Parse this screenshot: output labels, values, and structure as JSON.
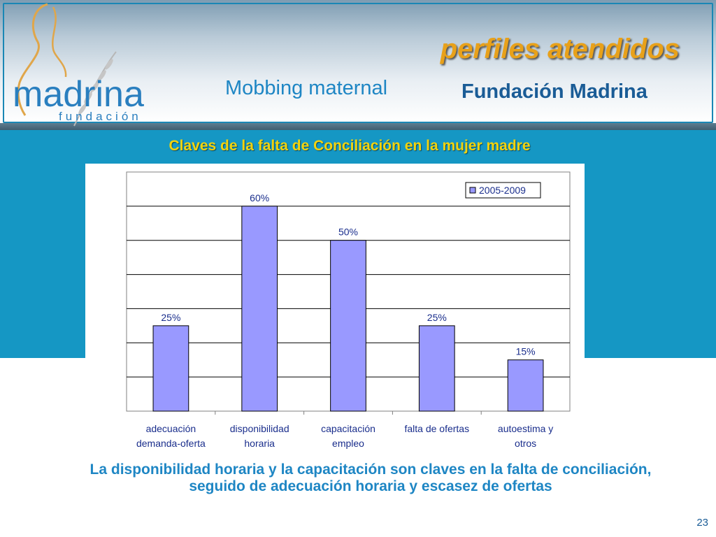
{
  "header": {
    "title": "perfiles atendidos",
    "subtitle_left": "Mobbing maternal",
    "subtitle_right": "Fundación Madrina",
    "logo": {
      "name": "madrina",
      "tagline": "fundación"
    }
  },
  "chart_data": {
    "type": "bar",
    "title": "Claves de la falta de Conciliación en la mujer madre",
    "categories": [
      [
        "adecuación",
        "demanda-oferta"
      ],
      [
        "disponibilidad",
        "horaria"
      ],
      [
        "capacitación",
        "empleo"
      ],
      [
        "falta de ofertas"
      ],
      [
        "autoestima y",
        "otros"
      ]
    ],
    "series": [
      {
        "name": "2005-2009",
        "values": [
          25,
          60,
          50,
          25,
          15
        ],
        "labels": [
          "25%",
          "60%",
          "50%",
          "25%",
          "15%"
        ],
        "color": "#9999ff"
      }
    ],
    "ylim": [
      0,
      70
    ],
    "grid": true,
    "legend": "top-right"
  },
  "conclusion": "La disponibilidad horaria y la capacitación son claves en la falta de conciliación, seguido de adecuación horaria y escasez de ofertas",
  "page_number": "23"
}
